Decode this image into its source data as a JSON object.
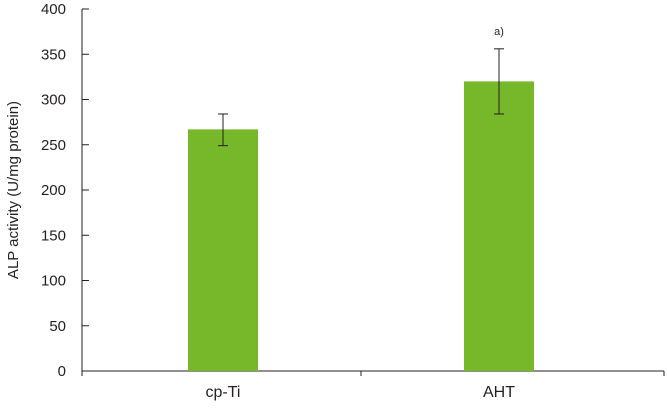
{
  "chart_data": {
    "type": "bar",
    "title": "",
    "xlabel": "",
    "ylabel": "ALP activity (U/mg protein)",
    "ylim": [
      0,
      400
    ],
    "yticks": [
      0,
      50,
      100,
      150,
      200,
      250,
      300,
      350,
      400
    ],
    "categories": [
      "cp-Ti",
      "AHT"
    ],
    "values": [
      267,
      320
    ],
    "error_low": [
      249,
      284
    ],
    "error_high": [
      284,
      356
    ],
    "annotations": [
      {
        "category": "AHT",
        "text": "a)"
      }
    ],
    "bar_color": "#76b82a",
    "axis_color": "#231f20",
    "grid": false,
    "legend": "none"
  }
}
